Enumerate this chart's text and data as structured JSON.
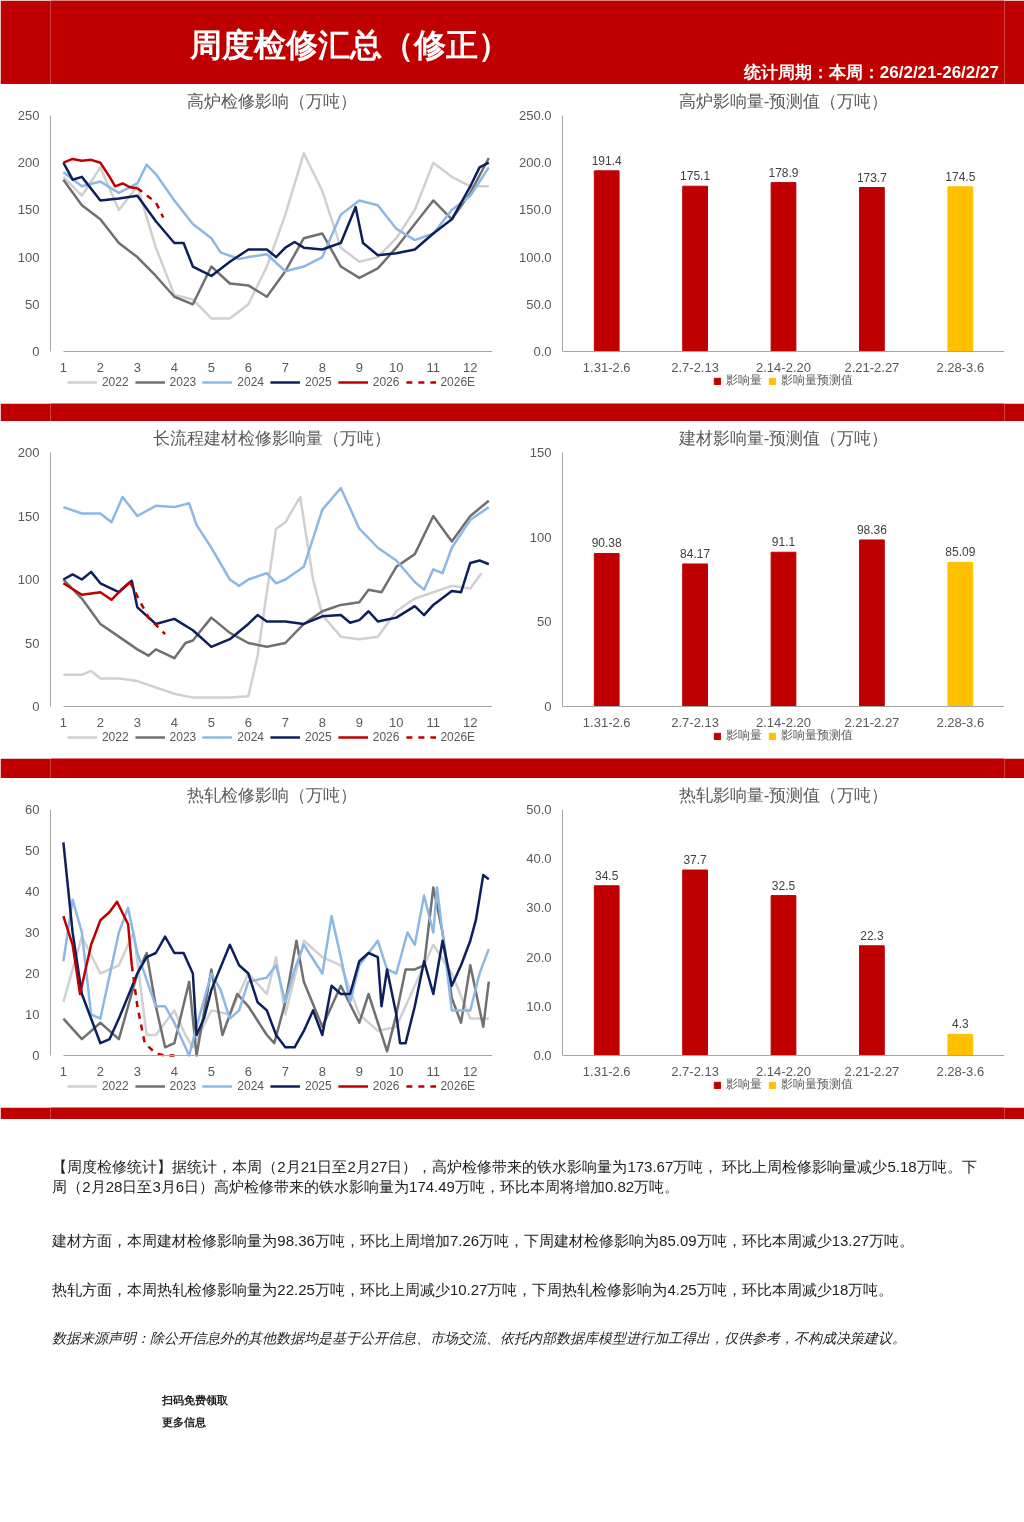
{
  "chart_data": [
    {
      "type": "other",
      "title": "周度检修汇总（修正）",
      "subtitle": "统计周期：本周：26/2/21-26/2/27"
    },
    {
      "type": "line",
      "title": "高炉检修影响（万吨）",
      "xlim": [
        1,
        12.6
      ],
      "xticks": [
        1,
        2,
        3,
        4,
        5,
        6,
        7,
        8,
        9,
        10,
        11,
        12
      ],
      "ylim": [
        0,
        250
      ],
      "yticks": [
        0,
        50,
        100,
        150,
        200,
        250
      ],
      "legend": "bottom",
      "series": [
        {
          "name": "2022",
          "color": "#d0d0d0",
          "x": [
            1,
            1.5,
            2,
            2.5,
            3,
            3.5,
            4,
            4.5,
            5,
            5.5,
            6,
            6.5,
            7,
            7.5,
            8,
            8.5,
            9,
            9.5,
            10,
            10.5,
            11,
            11.5,
            12,
            12.5
          ],
          "values": [
            185,
            165,
            195,
            150,
            175,
            110,
            60,
            55,
            35,
            35,
            50,
            90,
            145,
            210,
            170,
            110,
            95,
            100,
            120,
            150,
            200,
            185,
            175,
            175
          ]
        },
        {
          "name": "2023",
          "color": "#707070",
          "x": [
            1,
            1.5,
            2,
            2.5,
            3,
            3.5,
            4,
            4.5,
            5,
            5.5,
            6,
            6.5,
            7,
            7.5,
            8,
            8.5,
            9,
            9.5,
            10,
            10.5,
            11,
            11.5,
            12,
            12.5
          ],
          "values": [
            182,
            155,
            140,
            115,
            100,
            80,
            58,
            50,
            90,
            72,
            70,
            58,
            85,
            120,
            125,
            90,
            78,
            88,
            110,
            135,
            160,
            140,
            168,
            205
          ]
        },
        {
          "name": "2024",
          "color": "#8db8e3",
          "x": [
            1,
            1.5,
            2,
            2.5,
            3,
            3.25,
            3.5,
            4,
            4.5,
            5,
            5.25,
            5.75,
            6,
            6.5,
            7,
            7.5,
            8,
            8.5,
            9,
            9.5,
            10,
            10.5,
            11,
            11.5,
            12,
            12.5
          ],
          "values": [
            190,
            175,
            180,
            168,
            178,
            198,
            188,
            160,
            135,
            120,
            105,
            98,
            100,
            103,
            85,
            90,
            100,
            145,
            160,
            155,
            130,
            118,
            125,
            150,
            165,
            195
          ]
        },
        {
          "name": "2025",
          "color": "#0d1f5c",
          "x": [
            1,
            1.25,
            1.5,
            2,
            2.5,
            3,
            3.5,
            4,
            4.25,
            4.5,
            5,
            5.5,
            6,
            6.5,
            6.75,
            7,
            7.25,
            7.5,
            8,
            8.5,
            8.9,
            9.1,
            9.5,
            10,
            10.5,
            11,
            11.5,
            12,
            12.25,
            12.5
          ],
          "values": [
            200,
            182,
            185,
            160,
            162,
            165,
            138,
            115,
            115,
            90,
            80,
            95,
            108,
            108,
            100,
            110,
            116,
            110,
            108,
            115,
            153,
            115,
            102,
            104,
            108,
            125,
            140,
            175,
            195,
            200
          ]
        },
        {
          "name": "2026",
          "color": "#c00000",
          "x": [
            1,
            1.25,
            1.5,
            1.75,
            2,
            2.25,
            2.4,
            2.6,
            2.8,
            3
          ],
          "values": [
            200,
            204,
            202,
            203,
            200,
            185,
            175,
            178,
            174,
            173
          ]
        },
        {
          "name": "2026E",
          "color": "#c00000",
          "line_style": "dashed",
          "x": [
            3,
            3.5,
            3.7
          ],
          "values": [
            173,
            158,
            142
          ]
        }
      ]
    },
    {
      "type": "bar",
      "title": "高炉影响量-预测值（万吨）",
      "categories": [
        "1.31-2.6",
        "2.7-2.13",
        "2.14-2.20",
        "2.21-2.27",
        "2.28-3.6"
      ],
      "ylim": [
        0,
        250
      ],
      "yticks": [
        {
          "value": 0,
          "label": "0.0"
        },
        {
          "value": 50,
          "label": "50.0"
        },
        {
          "value": 100,
          "label": "100.0"
        },
        {
          "value": 150,
          "label": "150.0"
        },
        {
          "value": 200,
          "label": "200.0"
        },
        {
          "value": 250,
          "label": "250.0"
        }
      ],
      "data_labels": true,
      "legend": "bottom",
      "series": [
        {
          "name": "影响量",
          "color": "#c00000",
          "values": [
            191.4,
            175.1,
            178.9,
            173.7,
            null
          ]
        },
        {
          "name": "影响量预测值",
          "color": "#ffc000",
          "values": [
            null,
            null,
            null,
            null,
            174.5
          ]
        }
      ]
    },
    {
      "type": "line",
      "title": "长流程建材检修影响量（万吨）",
      "xlim": [
        1,
        12.6
      ],
      "xticks": [
        1,
        2,
        3,
        4,
        5,
        6,
        7,
        8,
        9,
        10,
        11,
        12
      ],
      "ylim": [
        0,
        200
      ],
      "yticks": [
        0,
        50,
        100,
        150,
        200
      ],
      "legend": "bottom",
      "series": [
        {
          "name": "2022",
          "color": "#d0d0d0",
          "x": [
            1,
            1.5,
            1.75,
            2,
            2.5,
            3,
            3.5,
            4,
            4.5,
            5,
            5.5,
            6,
            6.25,
            6.75,
            7,
            7.4,
            7.75,
            8,
            8.5,
            9,
            9.5,
            10,
            10.5,
            11,
            11.5,
            12,
            12.3
          ],
          "values": [
            25,
            25,
            28,
            22,
            22,
            20,
            15,
            10,
            7,
            7,
            7,
            8,
            40,
            140,
            145,
            165,
            100,
            72,
            55,
            53,
            55,
            75,
            85,
            90,
            95,
            93,
            105
          ]
        },
        {
          "name": "2023",
          "color": "#707070",
          "x": [
            1,
            1.5,
            2,
            2.5,
            3,
            3.3,
            3.5,
            4,
            4.3,
            4.5,
            5,
            5.5,
            6,
            6.5,
            7,
            7.5,
            8,
            8.5,
            9,
            9.25,
            9.6,
            10,
            10.5,
            11,
            11.5,
            12,
            12.5
          ],
          "values": [
            100,
            85,
            65,
            55,
            45,
            40,
            45,
            38,
            50,
            52,
            70,
            58,
            50,
            47,
            50,
            65,
            75,
            80,
            82,
            92,
            90,
            110,
            120,
            150,
            130,
            150,
            162
          ]
        },
        {
          "name": "2024",
          "color": "#8db8e3",
          "x": [
            1,
            1.5,
            2,
            2.3,
            2.6,
            3,
            3.5,
            4,
            4.4,
            4.6,
            5,
            5.5,
            5.75,
            6,
            6.5,
            6.75,
            7,
            7.5,
            8,
            8.5,
            9,
            9.5,
            10,
            10.5,
            10.75,
            11,
            11.25,
            11.5,
            12,
            12.5
          ],
          "values": [
            157,
            152,
            152,
            145,
            165,
            150,
            158,
            157,
            160,
            143,
            125,
            100,
            95,
            100,
            105,
            97,
            100,
            110,
            155,
            172,
            140,
            125,
            115,
            98,
            92,
            108,
            105,
            125,
            147,
            157
          ]
        },
        {
          "name": "2025",
          "color": "#0d1f5c",
          "x": [
            1,
            1.25,
            1.5,
            1.75,
            2,
            2.5,
            2.85,
            3,
            3.5,
            4,
            4.5,
            5,
            5.5,
            6,
            6.25,
            6.5,
            7,
            7.5,
            8,
            8.5,
            8.75,
            9,
            9.25,
            9.5,
            10,
            10.5,
            10.75,
            11,
            11.5,
            11.75,
            12,
            12.25,
            12.5
          ],
          "values": [
            100,
            104,
            100,
            106,
            97,
            90,
            99,
            78,
            65,
            69,
            60,
            47,
            53,
            65,
            72,
            67,
            67,
            65,
            71,
            72,
            66,
            68,
            75,
            67,
            70,
            79,
            72,
            80,
            91,
            90,
            113,
            115,
            112
          ]
        },
        {
          "name": "2026",
          "color": "#c00000",
          "x": [
            1,
            1.5,
            2,
            2.3,
            2.6,
            2.8
          ],
          "values": [
            97,
            88,
            90,
            84,
            93,
            98
          ]
        },
        {
          "name": "2026E",
          "color": "#c00000",
          "line_style": "dashed",
          "x": [
            2.8,
            3.3,
            3.75
          ],
          "values": [
            98,
            70,
            57
          ]
        }
      ]
    },
    {
      "type": "bar",
      "title": "建材影响量-预测值（万吨）",
      "categories": [
        "1.31-2.6",
        "2.7-2.13",
        "2.14-2.20",
        "2.21-2.27",
        "2.28-3.6"
      ],
      "ylim": [
        0,
        150
      ],
      "yticks": [
        0,
        50,
        100,
        150
      ],
      "data_labels": true,
      "legend": "bottom",
      "series": [
        {
          "name": "影响量",
          "color": "#c00000",
          "values": [
            90.38,
            84.17,
            91.1,
            98.36,
            null
          ]
        },
        {
          "name": "影响量预测值",
          "color": "#ffc000",
          "values": [
            null,
            null,
            null,
            null,
            85.09
          ]
        }
      ]
    },
    {
      "type": "line",
      "title": "热轧检修影响（万吨）",
      "xlim": [
        1,
        12.6
      ],
      "xticks": [
        1,
        2,
        3,
        4,
        5,
        6,
        7,
        8,
        9,
        10,
        11,
        12
      ],
      "ylim": [
        0,
        60
      ],
      "yticks": [
        0,
        10,
        20,
        30,
        40,
        50,
        60
      ],
      "legend": "bottom",
      "series": [
        {
          "name": "2022",
          "color": "#d0d0d0",
          "x": [
            1,
            1.5,
            2,
            2.5,
            2.9,
            3.25,
            3.5,
            4,
            4.3,
            4.5,
            5,
            5.5,
            6,
            6.5,
            6.75,
            7,
            7.5,
            8,
            8.5,
            9,
            9.5,
            10,
            10.5,
            11,
            11.5,
            12,
            12.5
          ],
          "values": [
            13,
            29,
            20,
            22,
            30,
            5,
            5,
            11,
            5,
            2,
            11,
            10,
            20,
            15,
            24,
            10,
            28,
            24,
            22,
            10,
            6,
            7,
            17,
            27,
            20,
            9,
            9
          ]
        },
        {
          "name": "2023",
          "color": "#707070",
          "x": [
            1,
            1.5,
            2,
            2.5,
            3,
            3.25,
            3.5,
            3.75,
            4,
            4.4,
            4.6,
            5,
            5.3,
            5.7,
            6,
            6.5,
            6.7,
            7,
            7.3,
            7.5,
            8,
            8.5,
            9,
            9.25,
            9.5,
            9.75,
            10,
            10.25,
            10.5,
            10.75,
            11,
            11.25,
            11.5,
            11.75,
            12,
            12.35,
            12.5
          ],
          "values": [
            9,
            4,
            8,
            4,
            20,
            25,
            12,
            2,
            3,
            18,
            0,
            21,
            5,
            15,
            12,
            5,
            3,
            13,
            28,
            18,
            7,
            17,
            8,
            15,
            8,
            1,
            10,
            21,
            21,
            22,
            41,
            30,
            14,
            8,
            22,
            7,
            18
          ]
        },
        {
          "name": "2024",
          "color": "#8db8e3",
          "x": [
            1,
            1.25,
            1.5,
            1.75,
            2,
            2.5,
            2.75,
            3,
            3.5,
            3.75,
            4,
            4.4,
            4.6,
            5,
            5.25,
            5.5,
            5.75,
            6,
            6.5,
            6.75,
            7,
            7.25,
            7.5,
            8,
            8.25,
            8.5,
            8.75,
            9,
            9.5,
            9.75,
            10,
            10.3,
            10.5,
            10.75,
            11,
            11.1,
            11.5,
            12,
            12.25,
            12.5
          ],
          "values": [
            23,
            38,
            30,
            10,
            9,
            30,
            36,
            25,
            12,
            12,
            8,
            0,
            7,
            20,
            16,
            9,
            11,
            18,
            19,
            22,
            13,
            21,
            27,
            20,
            34,
            24,
            13,
            22,
            28,
            21,
            20,
            30,
            27,
            39,
            30,
            41,
            11,
            11,
            20,
            26
          ]
        },
        {
          "name": "2025",
          "color": "#0d1f5c",
          "x": [
            1,
            1.25,
            1.5,
            2,
            2.25,
            2.5,
            3,
            3.25,
            3.5,
            3.75,
            4,
            4.25,
            4.5,
            4.6,
            4.8,
            5,
            5.5,
            5.75,
            6,
            6.25,
            6.5,
            6.75,
            7,
            7.25,
            7.5,
            7.75,
            8,
            8.25,
            8.5,
            8.75,
            9,
            9.25,
            9.5,
            9.6,
            9.75,
            10,
            10.1,
            10.25,
            10.5,
            10.75,
            11,
            11.25,
            11.5,
            11.75,
            12,
            12.15,
            12.35,
            12.5
          ],
          "values": [
            52,
            30,
            15,
            3,
            4,
            9,
            20,
            24,
            25,
            29,
            25,
            25,
            20,
            5,
            9,
            16,
            27,
            22,
            20,
            13,
            11,
            5,
            2,
            2,
            6,
            11,
            5,
            17,
            15,
            15,
            23,
            25,
            24,
            12,
            21,
            10,
            3,
            3,
            12,
            23,
            15,
            28,
            17,
            22,
            28,
            33,
            44,
            43
          ]
        },
        {
          "name": "2026",
          "color": "#c00000",
          "x": [
            1,
            1.25,
            1.45,
            1.75,
            2,
            2.25,
            2.45,
            2.75,
            2.85
          ],
          "values": [
            34,
            27,
            15,
            27,
            33,
            35,
            37.5,
            32,
            22
          ]
        },
        {
          "name": "2026E",
          "color": "#c00000",
          "line_style": "dashed",
          "x": [
            2.85,
            3,
            3.2,
            3.5,
            3.75,
            4
          ],
          "values": [
            22,
            12,
            3,
            0.5,
            0,
            0
          ]
        }
      ]
    },
    {
      "type": "bar",
      "title": "热轧影响量-预测值（万吨）",
      "categories": [
        "1.31-2.6",
        "2.7-2.13",
        "2.14-2.20",
        "2.21-2.27",
        "2.28-3.6"
      ],
      "ylim": [
        0,
        50
      ],
      "yticks": [
        {
          "value": 0,
          "label": "0.0"
        },
        {
          "value": 10,
          "label": "10.0"
        },
        {
          "value": 20,
          "label": "20.0"
        },
        {
          "value": 30,
          "label": "30.0"
        },
        {
          "value": 40,
          "label": "40.0"
        },
        {
          "value": 50,
          "label": "50.0"
        }
      ],
      "data_labels": true,
      "legend": "bottom",
      "series": [
        {
          "name": "影响量",
          "color": "#c00000",
          "values": [
            34.5,
            37.7,
            32.5,
            22.3,
            null
          ]
        },
        {
          "name": "影响量预测值",
          "color": "#ffc000",
          "values": [
            null,
            null,
            null,
            null,
            4.3
          ]
        }
      ]
    },
    {
      "type": "other",
      "annotations": [
        "【周度检修统计】据统计，本周（2月21日至2月27日），高炉检修带来的铁水影响量为173.67万吨， 环比上周检修影响量减少5.18万吨。下周（2月28日至3月6日）高炉检修带来的铁水影响量为174.49万吨，环比本周将增加0.82万吨。",
        "建材方面，本周建材检修影响量为98.36万吨，环比上周增加7.26万吨，下周建材检修影响为85.09万吨，环比本周减少13.27万吨。",
        "热轧方面，本周热轧检修影响量为22.25万吨，环比上周减少10.27万吨，下周热轧检修影响为4.25万吨，环比本周减少18万吨。",
        "数据来源声明：除公开信息外的其他数据均是基于公开信息、市场交流、依托内部数据库模型进行加工得出，仅供参考，不构成决策建议。",
        "扫码免费领取",
        "更多信息"
      ]
    }
  ]
}
